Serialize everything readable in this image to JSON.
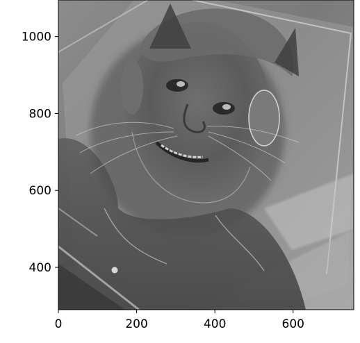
{
  "chart_data": {
    "type": "image",
    "title": "",
    "xlabel": "",
    "ylabel": "",
    "x_ticks": [
      0,
      200,
      400,
      600
    ],
    "y_ticks": [
      400,
      600,
      800,
      1000
    ],
    "xlim": [
      0,
      755
    ],
    "ylim": [
      1095,
      290
    ]
  }
}
